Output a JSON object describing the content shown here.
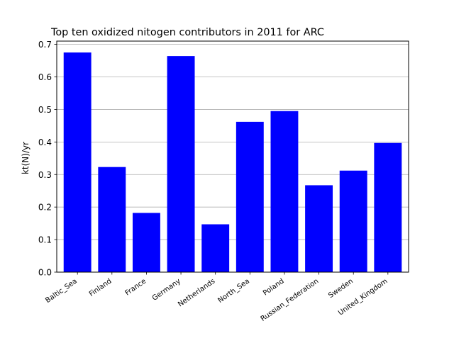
{
  "chart_data": {
    "type": "bar",
    "title": "Top ten oxidized nitogen contributors in 2011 for ARC",
    "xlabel": "",
    "ylabel": "kt(N)/yr",
    "categories": [
      "Baltic_Sea",
      "Finland",
      "France",
      "Germany",
      "Netherlands",
      "North_Sea",
      "Poland",
      "Russian_Federation",
      "Sweden",
      "United_Kingdom"
    ],
    "values": [
      0.675,
      0.323,
      0.182,
      0.664,
      0.147,
      0.462,
      0.495,
      0.267,
      0.312,
      0.397
    ],
    "ylim": [
      0,
      0.71
    ],
    "yticks": [
      0.0,
      0.1,
      0.2,
      0.3,
      0.4,
      0.5,
      0.6,
      0.7
    ],
    "ytick_labels": [
      "0.0",
      "0.1",
      "0.2",
      "0.3",
      "0.4",
      "0.5",
      "0.6",
      "0.7"
    ],
    "grid": "y-major",
    "legend": "none",
    "bar_color": "#0000ff",
    "grid_color": "#b0b0b0"
  }
}
